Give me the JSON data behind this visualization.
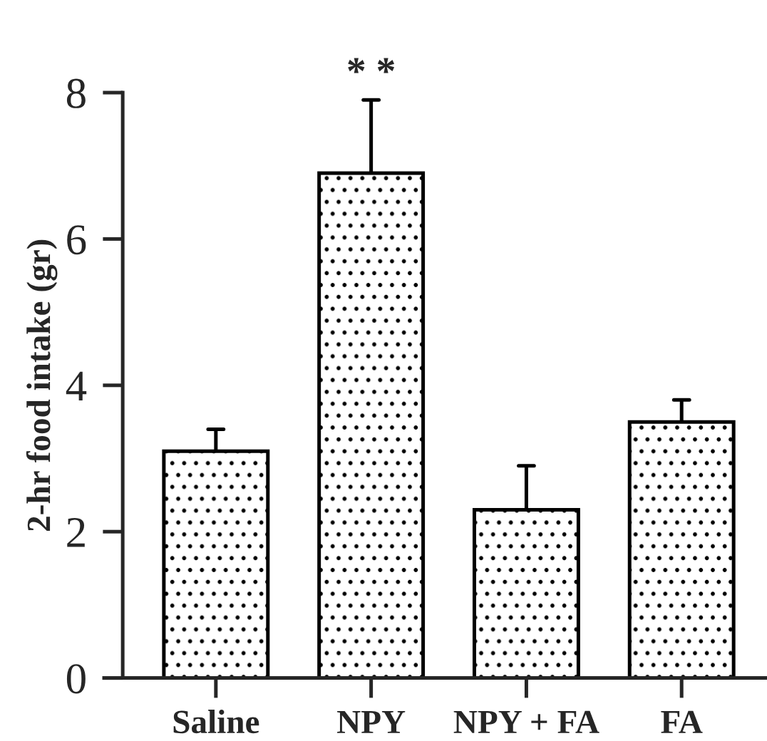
{
  "chart_data": {
    "type": "bar",
    "ylabel": "2-hr food intake (gr)",
    "categories": [
      "Saline",
      "NPY",
      "NPY + FA",
      "FA"
    ],
    "values": [
      3.1,
      6.9,
      2.3,
      3.5
    ],
    "errors": [
      [
        3.1,
        3.4
      ],
      [
        6.9,
        7.9
      ],
      [
        2.3,
        2.9
      ],
      [
        3.5,
        3.8
      ]
    ],
    "color": "#000000",
    "ylim": [
      0,
      8
    ],
    "yticks": [
      0,
      2,
      4,
      6,
      8
    ],
    "grid": false,
    "legend": false,
    "annotations": [
      {
        "text": "* *",
        "x": "NPY",
        "y": 7.9
      }
    ]
  }
}
